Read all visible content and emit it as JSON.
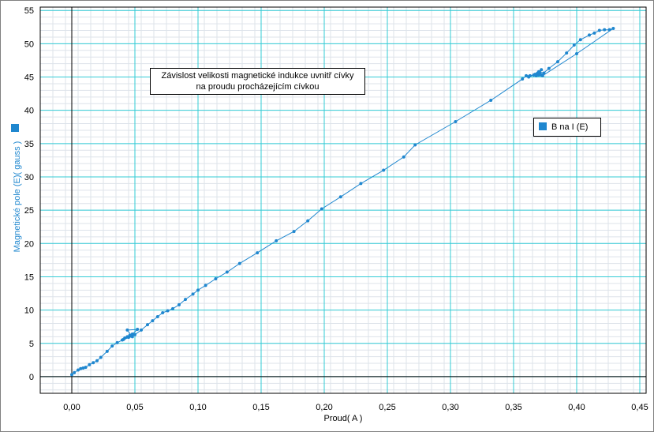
{
  "chart_data": {
    "type": "scatter",
    "title": "Závislost velikosti magnetické indukce uvnitř cívky na proudu procházejícím cívkou",
    "title_lines": [
      "Závislost velikosti magnetické indukce uvnitř cívky",
      "na proudu procházejícím cívkou"
    ],
    "xlabel": "Proud( A )",
    "ylabel": "Magnetické pole (E)( gauss )",
    "xlim": [
      -0.025,
      0.455
    ],
    "ylim": [
      -2.5,
      55.5
    ],
    "x_ticks": [
      0.0,
      0.05,
      0.1,
      0.15,
      0.2,
      0.25,
      0.3,
      0.35,
      0.4,
      0.45
    ],
    "x_tick_labels": [
      "0,00",
      "0,05",
      "0,10",
      "0,15",
      "0,20",
      "0,25",
      "0,30",
      "0,35",
      "0,40",
      "0,45"
    ],
    "y_ticks": [
      0,
      5,
      10,
      15,
      20,
      25,
      30,
      35,
      40,
      45,
      50,
      55
    ],
    "y_tick_labels": [
      "0",
      "5",
      "10",
      "15",
      "20",
      "25",
      "30",
      "35",
      "40",
      "45",
      "50",
      "55"
    ],
    "grid": true,
    "minor_grid": true,
    "connect_points": true,
    "legend_position": "right",
    "series": [
      {
        "name": "B na I (E)",
        "color": "#1f87cf",
        "points": [
          [
            0.0,
            0.3
          ],
          [
            0.002,
            0.6
          ],
          [
            0.005,
            1.0
          ],
          [
            0.007,
            1.2
          ],
          [
            0.009,
            1.3
          ],
          [
            0.011,
            1.4
          ],
          [
            0.014,
            1.8
          ],
          [
            0.017,
            2.1
          ],
          [
            0.02,
            2.4
          ],
          [
            0.023,
            2.9
          ],
          [
            0.028,
            3.8
          ],
          [
            0.032,
            4.6
          ],
          [
            0.036,
            5.1
          ],
          [
            0.04,
            5.5
          ],
          [
            0.042,
            5.8
          ],
          [
            0.044,
            6.0
          ],
          [
            0.046,
            6.2
          ],
          [
            0.048,
            6.4
          ],
          [
            0.052,
            7.1
          ],
          [
            0.044,
            7.0
          ],
          [
            0.048,
            6.0
          ],
          [
            0.041,
            5.6
          ],
          [
            0.045,
            5.9
          ],
          [
            0.05,
            6.3
          ],
          [
            0.055,
            7.0
          ],
          [
            0.06,
            7.8
          ],
          [
            0.064,
            8.4
          ],
          [
            0.068,
            9.0
          ],
          [
            0.072,
            9.6
          ],
          [
            0.076,
            9.9
          ],
          [
            0.08,
            10.2
          ],
          [
            0.085,
            10.8
          ],
          [
            0.09,
            11.6
          ],
          [
            0.096,
            12.4
          ],
          [
            0.1,
            13.0
          ],
          [
            0.106,
            13.7
          ],
          [
            0.114,
            14.7
          ],
          [
            0.123,
            15.7
          ],
          [
            0.133,
            17.0
          ],
          [
            0.147,
            18.6
          ],
          [
            0.162,
            20.4
          ],
          [
            0.176,
            21.8
          ],
          [
            0.187,
            23.4
          ],
          [
            0.198,
            25.2
          ],
          [
            0.213,
            27.0
          ],
          [
            0.229,
            29.0
          ],
          [
            0.247,
            31.0
          ],
          [
            0.263,
            33.0
          ],
          [
            0.272,
            34.8
          ],
          [
            0.304,
            38.3
          ],
          [
            0.332,
            41.5
          ],
          [
            0.357,
            44.7
          ],
          [
            0.36,
            45.2
          ],
          [
            0.363,
            45.2
          ],
          [
            0.366,
            45.3
          ],
          [
            0.368,
            45.2
          ],
          [
            0.37,
            45.3
          ],
          [
            0.371,
            45.5
          ],
          [
            0.372,
            46.1
          ],
          [
            0.369,
            45.6
          ],
          [
            0.372,
            45.3
          ],
          [
            0.378,
            46.3
          ],
          [
            0.385,
            47.3
          ],
          [
            0.392,
            48.6
          ],
          [
            0.398,
            49.8
          ],
          [
            0.403,
            50.6
          ],
          [
            0.41,
            51.3
          ],
          [
            0.414,
            51.6
          ],
          [
            0.418,
            52.0
          ],
          [
            0.422,
            52.1
          ],
          [
            0.426,
            52.1
          ],
          [
            0.429,
            52.3
          ],
          [
            0.4,
            48.5
          ],
          [
            0.373,
            45.2
          ],
          [
            0.367,
            45.4
          ],
          [
            0.362,
            45.0
          ],
          [
            0.37,
            45.8
          ],
          [
            0.374,
            45.6
          ]
        ]
      }
    ]
  }
}
